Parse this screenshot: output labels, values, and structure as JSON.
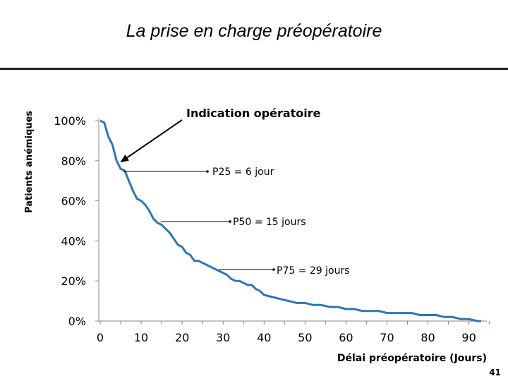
{
  "slide": {
    "title": "La prise en charge préopératoire",
    "page_number": "41"
  },
  "chart_data": {
    "type": "line",
    "title": "",
    "xlabel": "Délai préopératoire (Jours)",
    "ylabel": "Patients anémiques",
    "xlim": [
      0,
      93
    ],
    "ylim": [
      0,
      100
    ],
    "x_ticks": [
      "0",
      "10",
      "20",
      "30",
      "40",
      "50",
      "60",
      "70",
      "80",
      "90"
    ],
    "y_ticks": [
      "0%",
      "20%",
      "40%",
      "60%",
      "80%",
      "100%"
    ],
    "series": [
      {
        "name": "Patients anémiques",
        "color": "#2E75B6",
        "x": [
          0,
          1,
          2,
          3,
          4,
          5,
          6,
          7,
          8,
          9,
          10,
          11,
          12,
          13,
          14,
          15,
          16,
          17,
          18,
          19,
          20,
          21,
          22,
          23,
          24,
          25,
          26,
          27,
          28,
          29,
          30,
          31,
          32,
          33,
          34,
          35,
          36,
          37,
          38,
          39,
          40,
          42,
          44,
          46,
          48,
          50,
          52,
          54,
          56,
          58,
          60,
          62,
          64,
          66,
          68,
          70,
          72,
          74,
          76,
          78,
          80,
          82,
          84,
          86,
          88,
          90,
          92,
          93
        ],
        "y": [
          100,
          99,
          92,
          88,
          80,
          76,
          75,
          70,
          65,
          61,
          60,
          58,
          55,
          51,
          49,
          48,
          46,
          44,
          41,
          38,
          37,
          34,
          33,
          30,
          30,
          29,
          28,
          27,
          26,
          25,
          24,
          23,
          21,
          20,
          20,
          19,
          18,
          18,
          16,
          15,
          13,
          12,
          11,
          10,
          9,
          9,
          8,
          8,
          7,
          7,
          6,
          6,
          5,
          5,
          5,
          4,
          4,
          4,
          4,
          3,
          3,
          3,
          2,
          2,
          1,
          1,
          0,
          0
        ]
      }
    ],
    "annotations": [
      {
        "label": "Indication opératoire",
        "x": 6,
        "y": 76,
        "style": "bold"
      },
      {
        "label": "P25 = 6 jour",
        "x": 6,
        "y": 75
      },
      {
        "label": "P50 = 15 jours",
        "x": 15,
        "y": 49
      },
      {
        "label": "P75 = 29 jours",
        "x": 29,
        "y": 25
      }
    ]
  }
}
